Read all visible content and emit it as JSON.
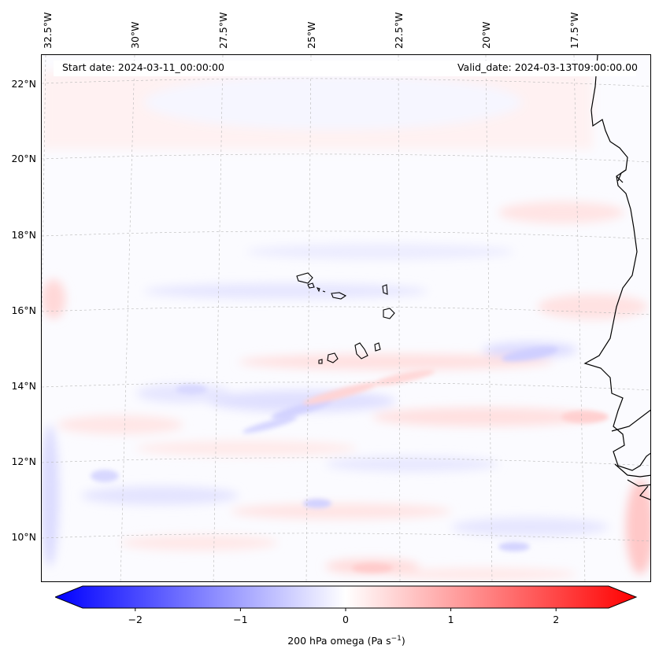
{
  "header": {
    "start_date": "Start date: 2024-03-11_00:00:00",
    "valid_date": "Valid_date: 2024-03-13T09:00:00.00"
  },
  "longitude_labels": [
    "32.5°W",
    "30°W",
    "27.5°W",
    "25°W",
    "22.5°W",
    "20°W",
    "17.5°W"
  ],
  "latitude_labels": [
    "22°N",
    "20°N",
    "18°N",
    "16°N",
    "14°N",
    "12°N",
    "10°N"
  ],
  "colorbar": {
    "title_text": "200 hPa omega (Pa s",
    "title_exponent": "−1",
    "title_close": ")",
    "min": -2.5,
    "max": 2.5,
    "ticks": [
      "−2",
      "−1",
      "0",
      "1",
      "2"
    ],
    "tick_values": [
      -2,
      -1,
      0,
      1,
      2
    ],
    "colormap": "bwr",
    "low_color": "#0000ff",
    "mid_color": "#ffffff",
    "high_color": "#ff0000",
    "extend": "both"
  },
  "map": {
    "variable": "200 hPa omega",
    "extent": {
      "lon_min": -32.6,
      "lon_max": -15.9,
      "lat_min": 8.9,
      "lat_max": 22.8
    },
    "gridlines": true,
    "coastline_color": "#000000"
  }
}
